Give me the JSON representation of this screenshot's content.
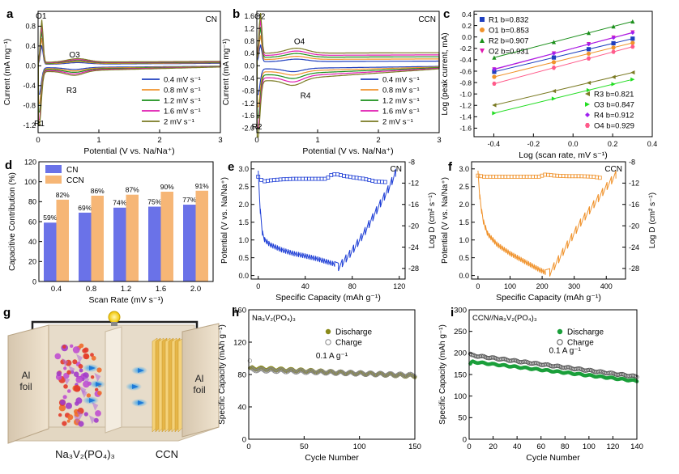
{
  "chart_data": [
    {
      "id": "a",
      "panel_letter": "a",
      "type": "line",
      "tag": "CN",
      "xlabel": "Potential (V vs. Na/Na⁺)",
      "ylabel": "Current (mA mg⁻¹)",
      "xlim": [
        0,
        3
      ],
      "ylim": [
        -1.35,
        1.1
      ],
      "xticks": [
        0,
        1,
        2,
        3
      ],
      "yticks": [
        -1.2,
        -0.8,
        -0.4,
        0.0,
        0.4,
        0.8
      ],
      "ytick_labels": [
        "-1.2",
        "-0.8",
        "-0.4",
        "0.0",
        "0.4",
        "0.8"
      ],
      "annotations": [
        {
          "text": "O1",
          "x": 0.05,
          "y": 0.95
        },
        {
          "text": "O3",
          "x": 0.6,
          "y": 0.17
        },
        {
          "text": "R3",
          "x": 0.55,
          "y": -0.55
        },
        {
          "text": "R1",
          "x": 0.02,
          "y": -1.22
        }
      ],
      "series": [
        {
          "name": "0.4 mV s⁻¹",
          "color": "#1f3fbf",
          "peak_ox": 0.38,
          "peak_red": -0.55,
          "upper_base": 0.03,
          "lower_base": -0.04,
          "hump": 0.03
        },
        {
          "name": "0.8 mV s⁻¹",
          "color": "#f0922b",
          "peak_ox": 0.52,
          "peak_red": -0.72,
          "upper_base": 0.04,
          "lower_base": -0.06,
          "hump": 0.04
        },
        {
          "name": "1.2 mV s⁻¹",
          "color": "#1a8f1a",
          "peak_ox": 0.65,
          "peak_red": -0.88,
          "upper_base": 0.05,
          "lower_base": -0.08,
          "hump": 0.05
        },
        {
          "name": "1.6 mV s⁻¹",
          "color": "#e01ab0",
          "peak_ox": 0.76,
          "peak_red": -1.02,
          "upper_base": 0.06,
          "lower_base": -0.1,
          "hump": 0.06
        },
        {
          "name": "2 mV s⁻¹",
          "color": "#7a7a22",
          "peak_ox": 0.86,
          "peak_red": -1.12,
          "upper_base": 0.07,
          "lower_base": -0.12,
          "hump": 0.07
        }
      ]
    },
    {
      "id": "b",
      "panel_letter": "b",
      "type": "line",
      "tag": "CCN",
      "xlabel": "Potential (V vs. Na/Na⁺)",
      "ylabel": "Current (mA mg⁻¹)",
      "xlim": [
        0,
        3
      ],
      "ylim": [
        -2.15,
        1.75
      ],
      "xticks": [
        0,
        1,
        2,
        3
      ],
      "yticks": [
        -2.0,
        -1.6,
        -1.2,
        -0.8,
        -0.4,
        0.0,
        0.4,
        0.8,
        1.2,
        1.6
      ],
      "ytick_labels": [
        "-2.0",
        "-1.6",
        "-1.2",
        "-0.8",
        "-0.4",
        "0.0",
        "0.4",
        "0.8",
        "1.2",
        "1.6"
      ],
      "annotations": [
        {
          "text": "O2",
          "x": 0.05,
          "y": 1.5
        },
        {
          "text": "O4",
          "x": 0.7,
          "y": 0.7
        },
        {
          "text": "R4",
          "x": 0.8,
          "y": -1.05
        },
        {
          "text": "R2",
          "x": 0.0,
          "y": -2.05
        }
      ],
      "series": [
        {
          "name": "0.4 mV s⁻¹",
          "color": "#1f3fbf",
          "peak_ox": 0.55,
          "peak_red": -0.85,
          "upper_base": 0.13,
          "lower_base": -0.1,
          "hump": 0.08
        },
        {
          "name": "0.8 mV s⁻¹",
          "color": "#f0922b",
          "peak_ox": 0.78,
          "peak_red": -1.15,
          "upper_base": 0.2,
          "lower_base": -0.2,
          "hump": 0.1
        },
        {
          "name": "1.2 mV s⁻¹",
          "color": "#1a8f1a",
          "peak_ox": 0.98,
          "peak_red": -1.42,
          "upper_base": 0.27,
          "lower_base": -0.3,
          "hump": 0.12
        },
        {
          "name": "1.6 mV s⁻¹",
          "color": "#e01ab0",
          "peak_ox": 1.15,
          "peak_red": -1.65,
          "upper_base": 0.33,
          "lower_base": -0.4,
          "hump": 0.14
        },
        {
          "name": "2 mV s⁻¹",
          "color": "#7a7a22",
          "peak_ox": 1.3,
          "peak_red": -1.85,
          "upper_base": 0.4,
          "lower_base": -0.5,
          "hump": 0.16
        }
      ]
    },
    {
      "id": "c",
      "panel_letter": "c",
      "type": "scatter",
      "xlabel": "Log (scan rate, mV s⁻¹)",
      "ylabel": "Log (peak current, mA)",
      "xlim": [
        -0.5,
        0.4
      ],
      "ylim": [
        -1.75,
        0.45
      ],
      "xticks": [
        -0.4,
        -0.2,
        0.0,
        0.2,
        0.4
      ],
      "xtick_labels": [
        "-0.4",
        "-0.2",
        "0.0",
        "0.2",
        "0.4"
      ],
      "yticks": [
        -1.6,
        -1.4,
        -1.2,
        -1.0,
        -0.8,
        -0.6,
        -0.4,
        -0.2,
        0.0,
        0.2,
        0.4
      ],
      "ytick_labels": [
        "-1.6",
        "-1.4",
        "-1.2",
        "-1.0",
        "-0.8",
        "-0.6",
        "-0.4",
        "-0.2",
        "0.0",
        "0.2",
        "0.4"
      ],
      "x": [
        -0.398,
        -0.097,
        0.079,
        0.204,
        0.301
      ],
      "series": [
        {
          "name": "R1 b=0.832",
          "color": "#1f3fbf",
          "marker": "square",
          "intercept": -0.28,
          "slope": 0.832
        },
        {
          "name": "O1 b=0.853",
          "color": "#f0922b",
          "marker": "circle",
          "intercept": -0.36,
          "slope": 0.853
        },
        {
          "name": "R2 b=0.907",
          "color": "#1a8f1a",
          "marker": "triangle-up",
          "intercept": 0.0,
          "slope": 0.907
        },
        {
          "name": "O2 b=0.931",
          "color": "#e01ab0",
          "marker": "triangle-down",
          "intercept": -0.2,
          "slope": 0.931
        },
        {
          "name": "R3 b=0.821",
          "color": "#7a7a22",
          "marker": "triangle-left",
          "intercept": -0.87,
          "slope": 0.821
        },
        {
          "name": "O3 b=0.847",
          "color": "#22dd22",
          "marker": "triangle-right",
          "intercept": -1.0,
          "slope": 0.847
        },
        {
          "name": "R4 b=0.912",
          "color": "#a020f0",
          "marker": "diamond",
          "intercept": -0.2,
          "slope": 0.912
        },
        {
          "name": "O4 b=0.929",
          "color": "#ff5a8a",
          "marker": "hexagon",
          "intercept": -0.45,
          "slope": 0.929
        }
      ]
    },
    {
      "id": "d",
      "panel_letter": "d",
      "type": "bar",
      "xlabel": "Scan Rate (mV s⁻¹)",
      "ylabel": "Capacitive Contribution (%)",
      "ylim": [
        0,
        120
      ],
      "yticks": [
        0,
        20,
        40,
        60,
        80,
        100,
        120
      ],
      "categories": [
        "0.4",
        "0.8",
        "1.2",
        "1.6",
        "2.0"
      ],
      "series": [
        {
          "name": "CN",
          "color": "#6a72e8",
          "values": [
            59,
            69,
            74,
            75,
            77
          ],
          "labels": [
            "59%",
            "69%",
            "74%",
            "75%",
            "77%"
          ]
        },
        {
          "name": "CCN",
          "color": "#f6b676",
          "values": [
            82,
            86,
            87,
            90,
            91
          ],
          "labels": [
            "82%",
            "86%",
            "87%",
            "90%",
            "91%"
          ]
        }
      ]
    },
    {
      "id": "e",
      "panel_letter": "e",
      "type": "line",
      "tag": "CN",
      "color": "#1f3fd6",
      "xlabel": "Specific Capacity (mAh g⁻¹)",
      "ylabel": "Potential (V vs. Na/Na⁺)",
      "ylabel_right": "Log D (cm² s⁻¹)",
      "xlim": [
        -6,
        125
      ],
      "ylim": [
        -0.1,
        3.2
      ],
      "y2lim": [
        -30,
        -8
      ],
      "xticks": [
        0,
        40,
        80,
        120
      ],
      "yticks": [
        0.0,
        0.5,
        1.0,
        1.5,
        2.0,
        2.5,
        3.0
      ],
      "ytick_labels": [
        "0.0",
        "0.5",
        "1.0",
        "1.5",
        "2.0",
        "2.5",
        "3.0"
      ],
      "y2ticks": [
        -8,
        -12,
        -16,
        -20,
        -24,
        -28
      ],
      "gitt_discharge": [
        [
          0,
          2.95
        ],
        [
          1,
          2.1
        ],
        [
          3,
          1.2
        ],
        [
          5,
          0.95
        ],
        [
          10,
          0.8
        ],
        [
          20,
          0.65
        ],
        [
          30,
          0.55
        ],
        [
          40,
          0.48
        ],
        [
          50,
          0.4
        ],
        [
          60,
          0.3
        ],
        [
          65,
          0.25
        ]
      ],
      "gitt_charge": [
        [
          65,
          0.25
        ],
        [
          70,
          0.4
        ],
        [
          80,
          0.8
        ],
        [
          90,
          1.3
        ],
        [
          100,
          1.9
        ],
        [
          110,
          2.5
        ],
        [
          117,
          3.0
        ]
      ],
      "logd": [
        [
          0,
          -10.8
        ],
        [
          4,
          -11.7
        ],
        [
          10,
          -11.5
        ],
        [
          20,
          -11.3
        ],
        [
          30,
          -11.2
        ],
        [
          40,
          -11.2
        ],
        [
          50,
          -11.2
        ],
        [
          58,
          -11.2
        ],
        [
          62,
          -10.5
        ],
        [
          66,
          -10.3
        ],
        [
          72,
          -10.6
        ],
        [
          80,
          -10.9
        ],
        [
          90,
          -11.2
        ],
        [
          100,
          -11.7
        ],
        [
          108,
          -11.8
        ]
      ]
    },
    {
      "id": "f",
      "panel_letter": "f",
      "type": "line",
      "tag": "CCN",
      "color": "#f0922b",
      "xlabel": "Specific Capacity (mAh g⁻¹)",
      "ylabel": "Potential (V vs. Na/Na⁺)",
      "ylabel_right": "Log D (cm² s⁻¹)",
      "xlim": [
        -20,
        460
      ],
      "ylim": [
        -0.1,
        3.2
      ],
      "y2lim": [
        -30,
        -8
      ],
      "xticks": [
        0,
        100,
        200,
        300,
        400
      ],
      "yticks": [
        0.0,
        0.5,
        1.0,
        1.5,
        2.0,
        2.5,
        3.0
      ],
      "ytick_labels": [
        "0.0",
        "0.5",
        "1.0",
        "1.5",
        "2.0",
        "2.5",
        "3.0"
      ],
      "y2ticks": [
        -8,
        -12,
        -16,
        -20,
        -24,
        -28
      ],
      "gitt_discharge": [
        [
          0,
          2.95
        ],
        [
          5,
          2.2
        ],
        [
          15,
          1.5
        ],
        [
          30,
          1.1
        ],
        [
          60,
          0.8
        ],
        [
          100,
          0.55
        ],
        [
          150,
          0.3
        ],
        [
          190,
          0.1
        ],
        [
          210,
          0.02
        ]
      ],
      "gitt_charge": [
        [
          210,
          0.02
        ],
        [
          240,
          0.4
        ],
        [
          280,
          1.0
        ],
        [
          320,
          1.6
        ],
        [
          360,
          2.1
        ],
        [
          400,
          2.6
        ],
        [
          430,
          2.95
        ]
      ],
      "logd": [
        [
          0,
          -10.6
        ],
        [
          20,
          -10.8
        ],
        [
          50,
          -10.8
        ],
        [
          100,
          -10.8
        ],
        [
          150,
          -10.8
        ],
        [
          190,
          -10.8
        ],
        [
          210,
          -10.4
        ],
        [
          240,
          -10.6
        ],
        [
          280,
          -10.7
        ],
        [
          320,
          -10.7
        ],
        [
          360,
          -10.8
        ],
        [
          380,
          -11.0
        ]
      ]
    },
    {
      "id": "h",
      "panel_letter": "h",
      "type": "scatter",
      "tag": "Na₃V₂(PO₄)₃",
      "annotation": "0.1 A g⁻¹",
      "xlabel": "Cycle Number",
      "ylabel": "Specific Capacity (mAh g⁻¹)",
      "xlim": [
        0,
        150
      ],
      "ylim": [
        0,
        160
      ],
      "xticks": [
        0,
        50,
        100,
        150
      ],
      "yticks": [
        0,
        40,
        80,
        120,
        160
      ],
      "series": [
        {
          "name": "Discharge",
          "color": "#8a8a1a",
          "filled": true,
          "start": 88,
          "end": 78,
          "first": 88
        },
        {
          "name": "Charge",
          "color": "#888888",
          "filled": false,
          "start": 86,
          "end": 79,
          "first": 97
        }
      ]
    },
    {
      "id": "i",
      "panel_letter": "i",
      "type": "scatter",
      "tag": "CCN//Na₃V₂(PO₄)₃",
      "annotation": "0.1 A g⁻¹",
      "xlabel": "Cycle Number",
      "ylabel": "Specific Capacity (mAh g⁻¹)",
      "xlim": [
        0,
        140
      ],
      "ylim": [
        0,
        300
      ],
      "xticks": [
        0,
        20,
        40,
        60,
        80,
        100,
        120,
        140
      ],
      "yticks": [
        0,
        50,
        100,
        150,
        200,
        250,
        300
      ],
      "series": [
        {
          "name": "Discharge",
          "color": "#1a9f3a",
          "filled": true,
          "start": 180,
          "end": 135,
          "first": 175
        },
        {
          "name": "Charge",
          "color": "#555555",
          "filled": false,
          "start": 195,
          "end": 145,
          "first": 198
        }
      ]
    }
  ],
  "schematic_g": {
    "panel_letter": "g",
    "left_foil_label": "Al\nfoil",
    "right_foil_label": "Al\nfoil",
    "cathode_label": "Na₃V₂(PO₄)₃",
    "anode_label": "CCN"
  }
}
